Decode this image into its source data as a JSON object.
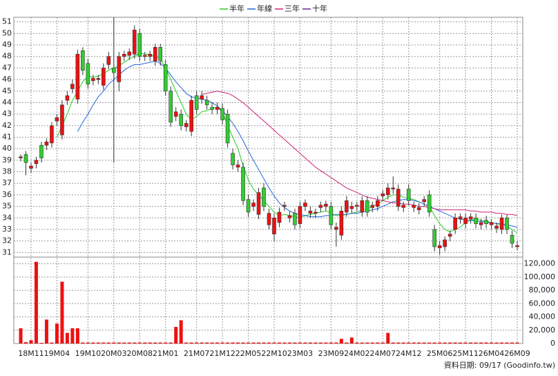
{
  "chart_data": {
    "type": "candlestick",
    "up_color": "#ee1111",
    "down_color": "#33cc33",
    "categories": [
      null,
      null,
      "18M11",
      null,
      null,
      null,
      null,
      "19M04",
      null,
      null,
      null,
      null,
      null,
      "19M10",
      null,
      null,
      null,
      null,
      "20M03",
      null,
      null,
      null,
      null,
      "20M08",
      null,
      null,
      null,
      null,
      "21M01",
      null,
      null,
      null,
      null,
      null,
      "21M07",
      null,
      null,
      null,
      null,
      "21M12",
      null,
      null,
      null,
      null,
      "22M05",
      null,
      null,
      null,
      null,
      "22M10",
      null,
      null,
      null,
      null,
      "23M03",
      null,
      null,
      null,
      null,
      null,
      "23M09",
      null,
      null,
      null,
      null,
      "24M02",
      null,
      null,
      null,
      null,
      "24M07",
      null,
      null,
      null,
      null,
      "24M12",
      null,
      null,
      null,
      null,
      null,
      "25M06",
      null,
      null,
      null,
      null,
      "25M11",
      null,
      null,
      null,
      null,
      "26M04",
      null,
      null,
      null,
      null,
      "26M09"
    ],
    "open": [
      39.2,
      39.5,
      38.3,
      38.7,
      40.3,
      40.3,
      40.5,
      42.4,
      41.2,
      44.2,
      45.2,
      44.3,
      48.5,
      47.4,
      45.9,
      46.0,
      45.5,
      47.3,
      47.0,
      45.8,
      48.0,
      48.1,
      48.2,
      50.0,
      48.0,
      48.0,
      47.6,
      48.8,
      47.3,
      45.0,
      42.8,
      43.0,
      41.9,
      41.5,
      44.6,
      44.3,
      44.2,
      43.6,
      43.4,
      43.5,
      43.0,
      39.6,
      38.4,
      38.4,
      35.6,
      35.0,
      34.3,
      36.6,
      33.4,
      32.6,
      33.6,
      35.0,
      34.0,
      34.4,
      33.5,
      35.0,
      34.4,
      34.4,
      34.9,
      35.0,
      35.0,
      33.0,
      32.5,
      34.5,
      34.8,
      35.0,
      34.5,
      35.5,
      34.9,
      35.0,
      35.9,
      36.0,
      36.5,
      35.0,
      34.9,
      36.5,
      34.9,
      34.7,
      35.4,
      36.0,
      33.0,
      31.4,
      31.5,
      32.4,
      33.0,
      33.9,
      33.5,
      33.9,
      34.0,
      33.4,
      33.8,
      33.4,
      33.1,
      33.0,
      34.0,
      32.5,
      31.5
    ],
    "high": [
      39.5,
      39.8,
      38.8,
      39.3,
      40.6,
      40.9,
      42.3,
      43.0,
      44.2,
      45.0,
      46.0,
      48.6,
      48.8,
      47.8,
      46.4,
      46.4,
      47.4,
      48.4,
      51.4,
      48.4,
      48.5,
      48.7,
      50.7,
      50.4,
      48.4,
      48.5,
      49.1,
      49.1,
      47.7,
      45.4,
      43.6,
      43.4,
      42.5,
      44.6,
      45.0,
      45.0,
      44.6,
      44.0,
      44.0,
      43.9,
      43.4,
      40.0,
      39.0,
      38.8,
      36.0,
      35.6,
      36.6,
      37.0,
      34.8,
      34.4,
      34.9,
      35.4,
      34.6,
      34.8,
      35.4,
      35.6,
      35.0,
      34.8,
      35.4,
      35.5,
      35.4,
      33.6,
      35.0,
      35.9,
      35.4,
      35.4,
      35.9,
      35.9,
      35.4,
      35.9,
      36.4,
      37.0,
      37.6,
      36.9,
      35.4,
      36.9,
      35.4,
      35.3,
      35.9,
      36.4,
      33.4,
      32.0,
      32.4,
      32.9,
      34.4,
      34.4,
      34.4,
      34.4,
      34.4,
      33.9,
      34.2,
      33.9,
      33.6,
      34.3,
      34.3,
      32.9,
      32.0
    ],
    "low": [
      38.9,
      37.7,
      37.9,
      38.3,
      38.8,
      39.9,
      40.1,
      42.0,
      40.8,
      43.8,
      44.8,
      43.9,
      46.4,
      45.2,
      45.5,
      45.6,
      45.1,
      46.9,
      38.8,
      45.0,
      47.6,
      47.7,
      47.8,
      47.6,
      47.6,
      47.6,
      47.2,
      47.2,
      44.6,
      41.9,
      42.4,
      41.6,
      41.5,
      41.1,
      43.0,
      43.9,
      43.4,
      43.0,
      43.0,
      42.1,
      40.1,
      38.2,
      38.0,
      35.1,
      34.1,
      34.6,
      33.9,
      34.6,
      33.0,
      32.0,
      33.2,
      34.6,
      33.6,
      33.0,
      33.1,
      34.6,
      34.0,
      34.0,
      34.5,
      34.6,
      33.0,
      31.5,
      32.1,
      34.1,
      34.4,
      34.6,
      34.1,
      34.1,
      34.5,
      34.6,
      35.5,
      35.6,
      36.1,
      34.6,
      34.5,
      35.1,
      34.5,
      34.3,
      35.0,
      34.1,
      31.1,
      30.8,
      31.1,
      32.0,
      32.6,
      33.5,
      33.1,
      33.5,
      33.1,
      33.0,
      33.1,
      33.0,
      32.7,
      32.6,
      32.6,
      31.4,
      31.2
    ],
    "close": [
      39.3,
      38.8,
      38.5,
      39.0,
      39.2,
      40.6,
      42.0,
      42.7,
      43.8,
      44.6,
      45.6,
      48.2,
      46.8,
      45.6,
      46.1,
      46.1,
      47.0,
      48.0,
      46.6,
      48.0,
      48.2,
      48.4,
      50.3,
      48.0,
      48.1,
      48.2,
      48.8,
      47.6,
      45.0,
      42.3,
      43.2,
      42.0,
      42.2,
      44.2,
      43.4,
      44.6,
      43.8,
      43.4,
      43.6,
      42.5,
      40.5,
      38.6,
      38.6,
      35.5,
      34.5,
      35.3,
      36.2,
      35.0,
      34.4,
      34.0,
      34.5,
      35.1,
      34.2,
      33.4,
      35.0,
      35.3,
      34.6,
      34.5,
      35.1,
      35.2,
      33.4,
      33.2,
      34.6,
      35.5,
      35.0,
      35.1,
      35.5,
      34.5,
      35.1,
      35.5,
      36.1,
      36.6,
      36.6,
      36.5,
      35.1,
      35.5,
      35.1,
      34.9,
      35.6,
      34.5,
      31.5,
      31.6,
      32.1,
      32.6,
      34.0,
      34.1,
      34.0,
      34.1,
      33.5,
      33.6,
      33.5,
      33.6,
      33.3,
      34.0,
      33.0,
      31.8,
      31.6
    ],
    "ylim": [
      30.6,
      51.4
    ],
    "yticks": [
      31,
      32,
      33,
      34,
      35,
      36,
      37,
      38,
      39,
      40,
      41,
      42,
      43,
      44,
      45,
      46,
      47,
      48,
      49,
      50,
      51
    ],
    "grid": true,
    "series": [
      {
        "name": "半年",
        "color": "#22cc22",
        "values": [
          null,
          null,
          null,
          null,
          null,
          null,
          null,
          41,
          42,
          43,
          44.2,
          45,
          45.8,
          46.3,
          46.2,
          46.3,
          46.5,
          46.8,
          47,
          47.2,
          47.5,
          47.8,
          48,
          48.3,
          48.2,
          48.2,
          48,
          47.8,
          47,
          46,
          45,
          44,
          43,
          42.5,
          42.8,
          43.2,
          43.3,
          43.5,
          43.6,
          43.2,
          42,
          41,
          40,
          38.5,
          37.3,
          36.5,
          36,
          35.5,
          35,
          34.5,
          34.2,
          34.3,
          34.2,
          34.1,
          34,
          34.2,
          34.3,
          34.4,
          34.5,
          34.6,
          34.4,
          34.2,
          34.2,
          34.3,
          34.4,
          34.5,
          34.7,
          34.8,
          35,
          35.2,
          35.5,
          35.8,
          36,
          36,
          35.8,
          35.7,
          35.6,
          35.4,
          35.2,
          35,
          34.2,
          33.5,
          33,
          32.8,
          33,
          33.2,
          33.6,
          33.8,
          33.9,
          33.8,
          33.7,
          33.6,
          33.5,
          33.4,
          33.3,
          33,
          32.7
        ]
      },
      {
        "name": "年線",
        "color": "#2266dd",
        "values": [
          null,
          null,
          null,
          null,
          null,
          null,
          null,
          null,
          null,
          null,
          null,
          41.5,
          42.3,
          43,
          43.8,
          44.5,
          45,
          45.6,
          46,
          46.4,
          46.8,
          47.1,
          47.3,
          47.3,
          47.4,
          47.5,
          47.6,
          47.4,
          47,
          46.4,
          45.8,
          45.3,
          44.8,
          44.5,
          44.4,
          44.3,
          44.2,
          44,
          43.7,
          43.3,
          42.8,
          42.2,
          41.5,
          40.7,
          39.8,
          39,
          38.2,
          37.4,
          36.6,
          35.9,
          35.3,
          34.9,
          34.6,
          34.4,
          34.3,
          34.2,
          34.1,
          34.1,
          34.1,
          34.2,
          34.2,
          34.3,
          34.3,
          34.3,
          34.4,
          34.4,
          34.5,
          34.6,
          34.7,
          34.8,
          35,
          35.2,
          35.4,
          35.5,
          35.6,
          35.6,
          35.5,
          35.4,
          35.2,
          35,
          34.8,
          34.6,
          34.4,
          34.2,
          34,
          33.9,
          33.8,
          33.8,
          33.7,
          33.7,
          33.6,
          33.6,
          33.5,
          33.5,
          33.4,
          33.3,
          33.2
        ]
      },
      {
        "name": "三年",
        "color": "#cc2277",
        "values": [
          null,
          null,
          null,
          null,
          null,
          null,
          null,
          null,
          null,
          null,
          null,
          null,
          null,
          null,
          null,
          null,
          null,
          null,
          null,
          null,
          null,
          null,
          null,
          null,
          null,
          null,
          null,
          null,
          null,
          null,
          null,
          null,
          null,
          null,
          null,
          44.7,
          44.8,
          44.9,
          45,
          44.9,
          44.8,
          44.6,
          44.3,
          44,
          43.6,
          43.2,
          42.8,
          42.4,
          42,
          41.6,
          41.2,
          40.8,
          40.4,
          40,
          39.6,
          39.2,
          38.8,
          38.4,
          38.1,
          37.8,
          37.5,
          37.2,
          36.9,
          36.6,
          36.4,
          36.2,
          36,
          35.8,
          35.7,
          35.6,
          35.5,
          35.4,
          35.3,
          35.3,
          35.2,
          35.2,
          35.1,
          35,
          35,
          34.9,
          34.8,
          34.7,
          34.7,
          34.7,
          34.7,
          34.7,
          34.7,
          34.6,
          34.6,
          34.5,
          34.5,
          34.5,
          34.4,
          34.4,
          34.3,
          34.3,
          34.2
        ]
      },
      {
        "name": "十年",
        "color": "#662299"
      }
    ],
    "volume": {
      "color": "#ee1111",
      "values": [
        23000,
        2000,
        5000,
        123000,
        1000,
        36000,
        1500,
        30000,
        93000,
        16000,
        23000,
        23000,
        1500,
        1500,
        1500,
        1500,
        1500,
        1500,
        1500,
        1500,
        1500,
        1500,
        1500,
        1500,
        1500,
        1500,
        1500,
        1500,
        1500,
        1500,
        25000,
        35000,
        1500,
        1500,
        1500,
        1500,
        1500,
        1500,
        1500,
        1500,
        1500,
        1500,
        1500,
        1500,
        1500,
        1500,
        1500,
        1500,
        1500,
        1500,
        1500,
        1500,
        1500,
        1500,
        1500,
        1500,
        1500,
        1500,
        1500,
        1500,
        1500,
        1500,
        7000,
        1500,
        9000,
        1500,
        1500,
        1500,
        1500,
        1500,
        1500,
        16000,
        1500,
        1500,
        1500,
        1500,
        1500,
        1500,
        1500,
        1500,
        1500,
        1500,
        1500,
        1500,
        1500,
        1500,
        1500,
        1500,
        1500,
        1500,
        1500,
        1500,
        1500,
        1500,
        1500,
        1500,
        1500
      ],
      "ylim": [
        0,
        130000
      ],
      "yticks": [
        0,
        {
          "value": 20000,
          "label": "20,000"
        },
        {
          "value": 40000,
          "label": "40,000"
        },
        {
          "value": 60000,
          "label": "60,000"
        },
        {
          "value": 80000,
          "label": "80,000"
        },
        {
          "value": 100000,
          "label": "100,000"
        },
        {
          "value": 120000,
          "label": "120,000"
        }
      ]
    },
    "source_note": "資料日期: 09/17 (Goodinfo.tw)"
  }
}
